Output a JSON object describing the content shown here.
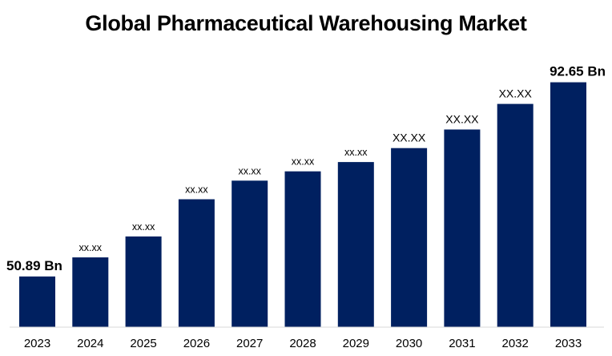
{
  "chart_data": {
    "type": "bar",
    "title": "Global Pharmaceutical Warehousing Market",
    "xlabel": "",
    "ylabel": "",
    "categories": [
      "2023",
      "2024",
      "2025",
      "2026",
      "2027",
      "2028",
      "2029",
      "2030",
      "2031",
      "2032",
      "2033"
    ],
    "values": [
      50.89,
      55.0,
      59.5,
      67.5,
      71.5,
      73.5,
      75.5,
      78.5,
      82.5,
      88.0,
      92.65
    ],
    "data_labels": [
      "50.89 Bn",
      "xx.xx",
      "xx.xx",
      "xx.xx",
      "xx.xx",
      "xx.xx",
      "xx.xx",
      "XX.XX",
      "XX.XX",
      "XX.XX",
      "92.65 Bn"
    ],
    "ylim": [
      40,
      100
    ],
    "grid": false,
    "legend": "none",
    "bar_color": "#002060"
  }
}
